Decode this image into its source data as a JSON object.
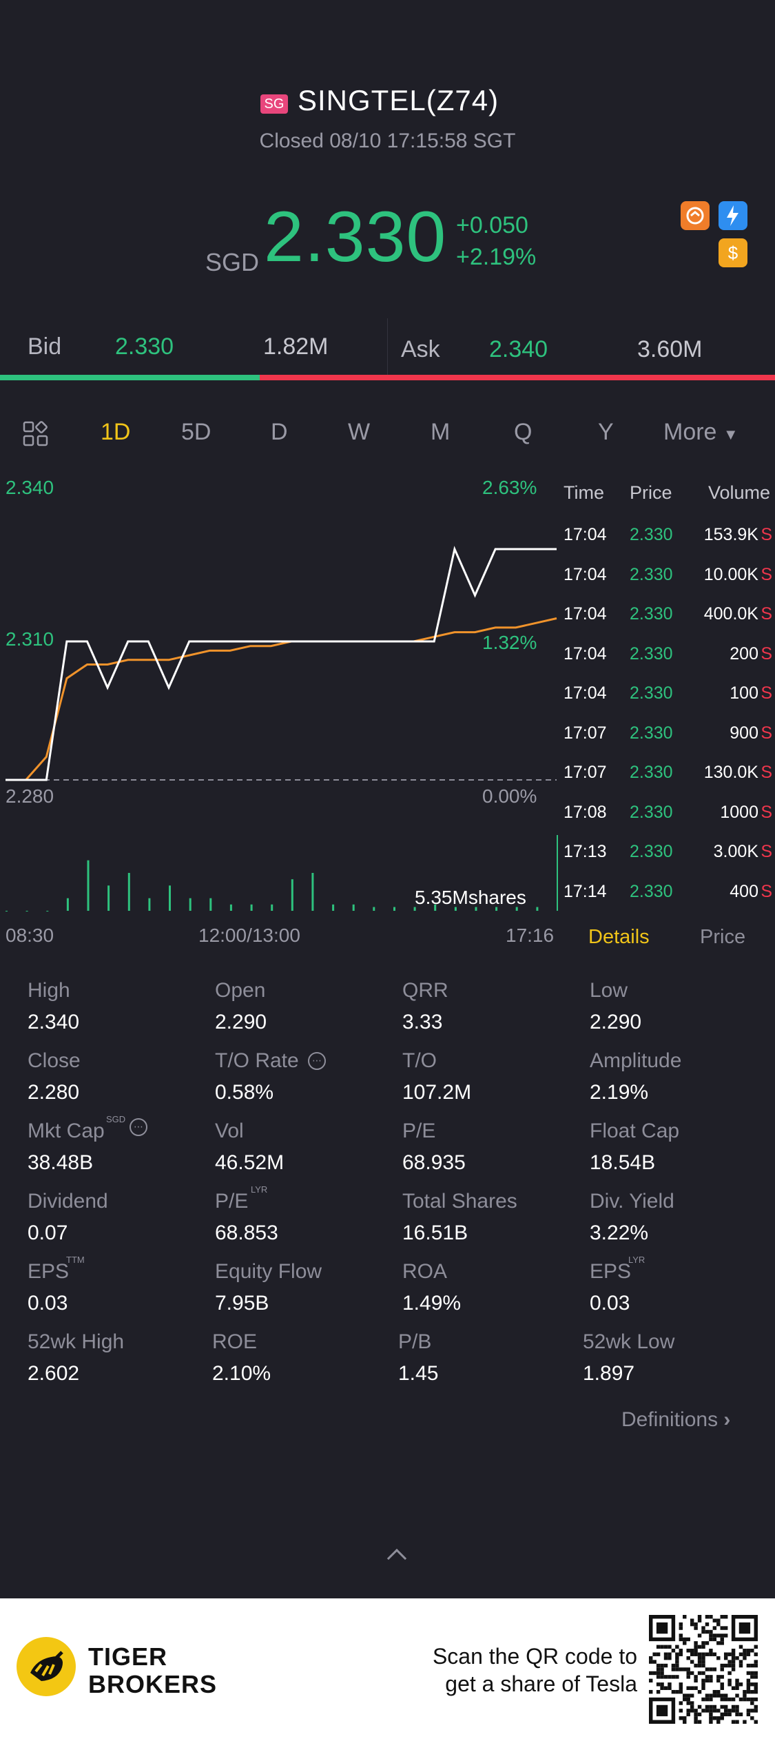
{
  "header": {
    "market_badge": "SG",
    "title": "SINGTEL(Z74)",
    "status": "Closed 08/10 17:15:58 SGT",
    "currency": "SGD",
    "price": "2.330",
    "change": "+0.050",
    "change_pct": "+2.19%",
    "icon_colors": [
      "#f07d2a",
      "#2e8ef0",
      "#f2a51f"
    ],
    "icon_sub": "1",
    "icon_dollar": "$"
  },
  "bid_ask": {
    "bid_label": "Bid",
    "bid_price": "2.330",
    "bid_size": "1.82M",
    "ask_label": "Ask",
    "ask_price": "2.340",
    "ask_size": "3.60M",
    "bid_ratio": 0.335
  },
  "tabs": [
    "1D",
    "5D",
    "D",
    "W",
    "M",
    "Q",
    "Y",
    "More"
  ],
  "active_tab": "1D",
  "chart_data": {
    "type": "line",
    "y_high_label": "2.340",
    "y_mid_label": "2.310",
    "y_low_label": "2.280",
    "pct_high_label": "2.63%",
    "pct_mid_label": "1.32%",
    "pct_low_label": "0.00%",
    "x_labels": [
      "08:30",
      "12:00/13:00",
      "17:16"
    ],
    "volume_label": "5.35Mshares",
    "ylim": [
      2.28,
      2.34
    ],
    "series": [
      {
        "values": [
          2.28,
          2.28,
          2.28,
          2.31,
          2.31,
          2.3,
          2.31,
          2.31,
          2.3,
          2.31,
          2.31,
          2.31,
          2.31,
          2.31,
          2.31,
          2.31,
          2.31,
          2.31,
          2.31,
          2.31,
          2.31,
          2.31,
          2.33,
          2.32,
          2.33,
          2.33,
          2.33,
          2.33
        ]
      },
      {
        "values": [
          2.28,
          2.28,
          2.285,
          2.302,
          2.305,
          2.305,
          2.306,
          2.306,
          2.306,
          2.307,
          2.308,
          2.308,
          2.309,
          2.309,
          2.31,
          2.31,
          2.31,
          2.31,
          2.31,
          2.31,
          2.31,
          2.311,
          2.312,
          2.312,
          2.313,
          2.313,
          2.314,
          2.315
        ]
      }
    ],
    "volume": [
      0,
      0,
      0,
      1,
      4,
      2,
      3,
      1,
      2,
      1,
      1,
      0.5,
      0.5,
      0.5,
      2.5,
      3,
      0.5,
      0.5,
      0.3,
      0.3,
      0.3,
      0.5,
      0.3,
      0.3,
      0.3,
      0.3,
      0.3,
      6
    ]
  },
  "trades": {
    "headers": {
      "time": "Time",
      "price": "Price",
      "volume": "Volume"
    },
    "rows": [
      {
        "time": "17:04",
        "price": "2.330",
        "volume": "153.9K",
        "flag": "S"
      },
      {
        "time": "17:04",
        "price": "2.330",
        "volume": "10.00K",
        "flag": "S"
      },
      {
        "time": "17:04",
        "price": "2.330",
        "volume": "400.0K",
        "flag": "S"
      },
      {
        "time": "17:04",
        "price": "2.330",
        "volume": "200",
        "flag": "S"
      },
      {
        "time": "17:04",
        "price": "2.330",
        "volume": "100",
        "flag": "S"
      },
      {
        "time": "17:07",
        "price": "2.330",
        "volume": "900",
        "flag": "S"
      },
      {
        "time": "17:07",
        "price": "2.330",
        "volume": "130.0K",
        "flag": "S"
      },
      {
        "time": "17:08",
        "price": "2.330",
        "volume": "1000",
        "flag": "S"
      },
      {
        "time": "17:13",
        "price": "2.330",
        "volume": "3.00K",
        "flag": "S"
      },
      {
        "time": "17:14",
        "price": "2.330",
        "volume": "400",
        "flag": "S"
      }
    ],
    "tab_details": "Details",
    "tab_price": "Price"
  },
  "stats": {
    "high_label": "High",
    "high": "2.340",
    "open_label": "Open",
    "open": "2.290",
    "qrr_label": "QRR",
    "qrr": "3.33",
    "low_label": "Low",
    "low": "2.290",
    "close_label": "Close",
    "close": "2.280",
    "to_rate_label": "T/O Rate",
    "to_rate": "0.58%",
    "to_label": "T/O",
    "to": "107.2M",
    "amplitude_label": "Amplitude",
    "amplitude": "2.19%",
    "mktcap_label": "Mkt Cap",
    "mktcap_sup": "SGD",
    "mktcap": "38.48B",
    "vol_label": "Vol",
    "vol": "46.52M",
    "pe_label": "P/E",
    "pe": "68.935",
    "floatcap_label": "Float Cap",
    "floatcap": "18.54B",
    "dividend_label": "Dividend",
    "dividend": "0.07",
    "pe_lyr_label": "P/E",
    "pe_lyr_sup": "LYR",
    "pe_lyr": "68.853",
    "totalshares_label": "Total Shares",
    "totalshares": "16.51B",
    "divyield_label": "Div. Yield",
    "divyield": "3.22%",
    "eps_ttm_label": "EPS",
    "eps_ttm_sup": "TTM",
    "eps_ttm": "0.03",
    "equityflow_label": "Equity Flow",
    "equityflow": "7.95B",
    "roa_label": "ROA",
    "roa": "1.49%",
    "eps_lyr_label": "EPS",
    "eps_lyr_sup": "LYR",
    "eps_lyr": "0.03",
    "wk52high_label": "52wk High",
    "wk52high": "2.602",
    "roe_label": "ROE",
    "roe": "2.10%",
    "pb_label": "P/B",
    "pb": "1.45",
    "wk52low_label": "52wk Low",
    "wk52low": "1.897"
  },
  "definitions": "Definitions",
  "footer": {
    "brand_line1": "TIGER",
    "brand_line2": "BROKERS",
    "scan_line1": "Scan the QR code to",
    "scan_line2": "get a share of Tesla"
  }
}
